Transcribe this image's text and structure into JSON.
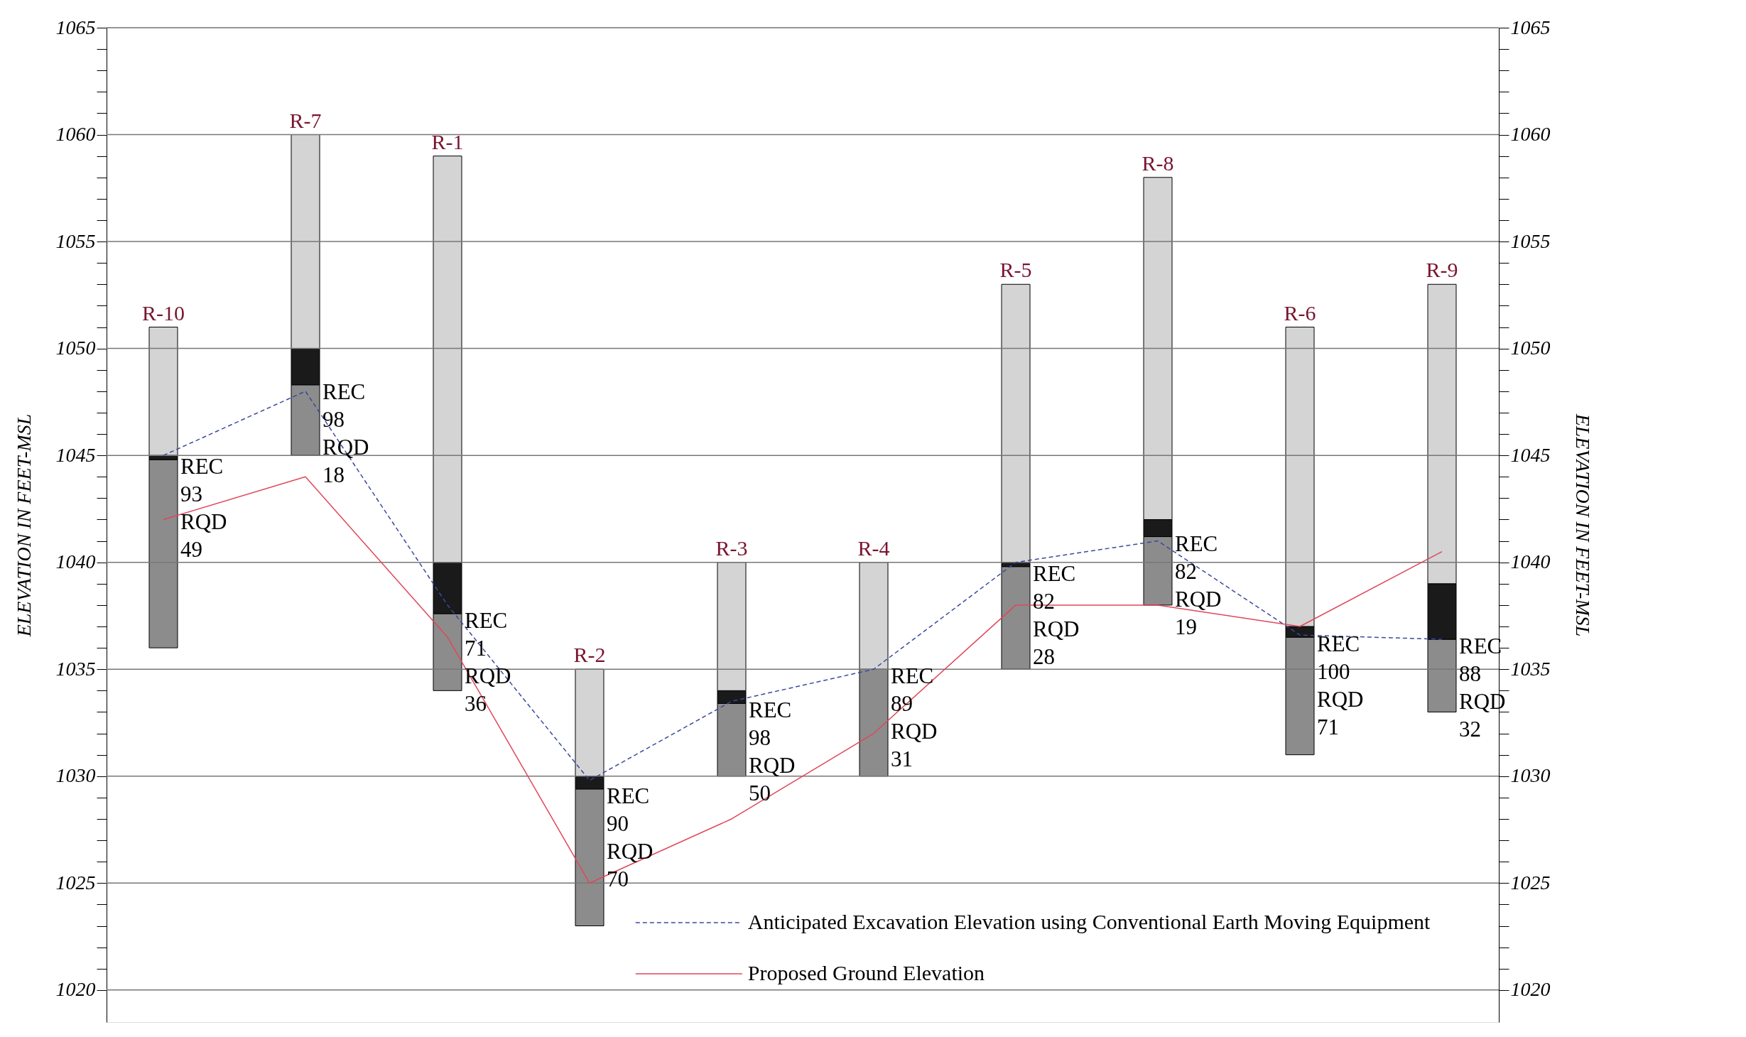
{
  "chart_data": {
    "type": "bar",
    "categories": [
      "R-10",
      "R-7",
      "R-1",
      "R-2",
      "R-3",
      "R-4",
      "R-5",
      "R-8",
      "R-6",
      "R-9"
    ],
    "series": [
      {
        "color": "#8c8c8c",
        "base": [
          1036,
          1045,
          1034,
          1023,
          1030,
          1030,
          1035,
          1038,
          1031,
          1033
        ],
        "values": [
          8.8,
          3.3,
          3.6,
          6.4,
          3.4,
          5,
          4.8,
          3.2,
          5.5,
          3.4
        ]
      },
      {
        "color": "#1a1a1a",
        "base": [
          1044.8,
          1048.3,
          1037.6,
          1029.4,
          1033.4,
          null,
          1039.8,
          1041.2,
          1036.5,
          1036.4
        ],
        "values": [
          0.2,
          1.7,
          2.4,
          0.6,
          0.6,
          null,
          0.2,
          0.8,
          0.5,
          2.6
        ]
      },
      {
        "color": "#d4d4d4",
        "base": [
          1045,
          1050,
          1040,
          1030,
          1034,
          1035,
          1040,
          1042,
          1037,
          1039
        ],
        "values": [
          6,
          10,
          19,
          5,
          6,
          5,
          13,
          16,
          14,
          14
        ]
      },
      {
        "type": "line",
        "name": "Anticipated Excavation Elevation using Conventional Earth Moving Equipment",
        "color": "#3b4a9e",
        "line_style": "dashed",
        "values": [
          1045,
          1048,
          1038,
          1029.8,
          1033.5,
          1035,
          1040,
          1041,
          1036.6,
          1036.4
        ]
      },
      {
        "type": "line",
        "name": "Proposed Ground Elevation",
        "color": "#e0475b",
        "line_style": "solid",
        "values": [
          1042,
          1044,
          1036.5,
          1025,
          1028,
          1032,
          1038,
          1038,
          1037,
          1040.5
        ]
      }
    ],
    "annotations": [
      {
        "text": "REC\n93\nRQD\n49",
        "x": "R-10",
        "y": 1044.8
      },
      {
        "text": "REC\n98\nRQD\n18",
        "x": "R-7",
        "y": 1048.3
      },
      {
        "text": "REC\n71\nRQD\n36",
        "x": "R-1",
        "y": 1037.6
      },
      {
        "text": "REC\n90\nRQD\n70",
        "x": "R-2",
        "y": 1029.4
      },
      {
        "text": "REC\n98\nRQD\n50",
        "x": "R-3",
        "y": 1033.4
      },
      {
        "text": "REC\n89\nRQD\n31",
        "x": "R-4",
        "y": 1035
      },
      {
        "text": "REC\n82\nRQD\n28",
        "x": "R-5",
        "y": 1039.8
      },
      {
        "text": "REC\n82\nRQD\n19",
        "x": "R-8",
        "y": 1041.2
      },
      {
        "text": "REC\n100\nRQD\n71",
        "x": "R-6",
        "y": 1036.5
      },
      {
        "text": "REC\n88\nRQD\n32",
        "x": "R-9",
        "y": 1036.4
      }
    ],
    "ylabel": "ELEVATION IN FEET-MSL",
    "y2label": "ELEVATION IN FEET-MSL",
    "ylim": [
      1018.5,
      1065
    ],
    "y2lim": [
      1018.5,
      1065
    ],
    "yticks": [
      1020,
      {
        "value": 1021,
        "label": null
      },
      {
        "value": 1022,
        "label": null
      },
      {
        "value": 1023,
        "label": null
      },
      {
        "value": 1024,
        "label": null
      },
      1025,
      {
        "value": 1026,
        "label": null
      },
      {
        "value": 1027,
        "label": null
      },
      {
        "value": 1028,
        "label": null
      },
      {
        "value": 1029,
        "label": null
      },
      1030,
      {
        "value": 1031,
        "label": null
      },
      {
        "value": 1032,
        "label": null
      },
      {
        "value": 1033,
        "label": null
      },
      {
        "value": 1034,
        "label": null
      },
      1035,
      {
        "value": 1036,
        "label": null
      },
      {
        "value": 1037,
        "label": null
      },
      {
        "value": 1038,
        "label": null
      },
      {
        "value": 1039,
        "label": null
      },
      1040,
      {
        "value": 1041,
        "label": null
      },
      {
        "value": 1042,
        "label": null
      },
      {
        "value": 1043,
        "label": null
      },
      {
        "value": 1044,
        "label": null
      },
      1045,
      {
        "value": 1046,
        "label": null
      },
      {
        "value": 1047,
        "label": null
      },
      {
        "value": 1048,
        "label": null
      },
      {
        "value": 1049,
        "label": null
      },
      1050,
      {
        "value": 1051,
        "label": null
      },
      {
        "value": 1052,
        "label": null
      },
      {
        "value": 1053,
        "label": null
      },
      {
        "value": 1054,
        "label": null
      },
      1055,
      {
        "value": 1056,
        "label": null
      },
      {
        "value": 1057,
        "label": null
      },
      {
        "value": 1058,
        "label": null
      },
      {
        "value": 1059,
        "label": null
      },
      1060,
      {
        "value": 1061,
        "label": null
      },
      {
        "value": 1062,
        "label": null
      },
      {
        "value": 1063,
        "label": null
      },
      {
        "value": 1064,
        "label": null
      },
      1065
    ],
    "y2ticks": [
      1020,
      {
        "value": 1021,
        "label": null
      },
      {
        "value": 1022,
        "label": null
      },
      {
        "value": 1023,
        "label": null
      },
      {
        "value": 1024,
        "label": null
      },
      1025,
      {
        "value": 1026,
        "label": null
      },
      {
        "value": 1027,
        "label": null
      },
      {
        "value": 1028,
        "label": null
      },
      {
        "value": 1029,
        "label": null
      },
      1030,
      {
        "value": 1031,
        "label": null
      },
      {
        "value": 1032,
        "label": null
      },
      {
        "value": 1033,
        "label": null
      },
      {
        "value": 1034,
        "label": null
      },
      1035,
      {
        "value": 1036,
        "label": null
      },
      {
        "value": 1037,
        "label": null
      },
      {
        "value": 1038,
        "label": null
      },
      {
        "value": 1039,
        "label": null
      },
      1040,
      {
        "value": 1041,
        "label": null
      },
      {
        "value": 1042,
        "label": null
      },
      {
        "value": 1043,
        "label": null
      },
      {
        "value": 1044,
        "label": null
      },
      1045,
      {
        "value": 1046,
        "label": null
      },
      {
        "value": 1047,
        "label": null
      },
      {
        "value": 1048,
        "label": null
      },
      {
        "value": 1049,
        "label": null
      },
      1050,
      {
        "value": 1051,
        "label": null
      },
      {
        "value": 1052,
        "label": null
      },
      {
        "value": 1053,
        "label": null
      },
      {
        "value": 1054,
        "label": null
      },
      1055,
      {
        "value": 1056,
        "label": null
      },
      {
        "value": 1057,
        "label": null
      },
      {
        "value": 1058,
        "label": null
      },
      {
        "value": 1059,
        "label": null
      },
      1060,
      {
        "value": 1061,
        "label": null
      },
      {
        "value": 1062,
        "label": null
      },
      {
        "value": 1063,
        "label": null
      },
      {
        "value": 1064,
        "label": null
      },
      1065
    ],
    "grid": "y",
    "legend": "bottom",
    "tick_labels": "y",
    "marker": "none"
  }
}
